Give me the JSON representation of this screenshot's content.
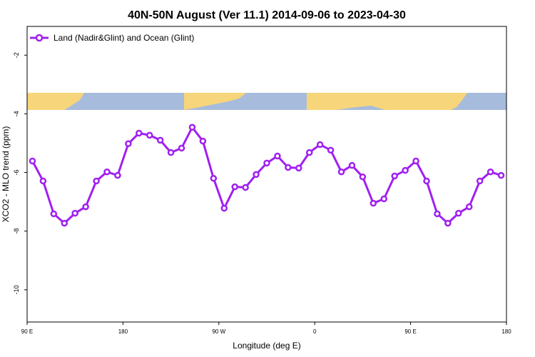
{
  "chart_data": {
    "type": "line",
    "title": "40N-50N August (Ver 11.1)   2014-09-06 to 2023-04-30",
    "x_label": "Longitude (deg E)",
    "y_label": "XCO2 - MLO trend (ppm)",
    "x": [
      95,
      105,
      115,
      125,
      135,
      145,
      155,
      165,
      175,
      185,
      195,
      205,
      215,
      225,
      235,
      245,
      255,
      265,
      275,
      285,
      295,
      305,
      315,
      325,
      335,
      345,
      355,
      365,
      375,
      385,
      395,
      405,
      415,
      425,
      435,
      445,
      455,
      465,
      475,
      485,
      495,
      505,
      515,
      525,
      535
    ],
    "series": [
      {
        "name": "Land (Nadir&Glint) and Ocean (Glint)",
        "color": "#a020f0",
        "values": [
          -5.61,
          -6.29,
          -7.41,
          -7.73,
          -7.39,
          -7.17,
          -6.29,
          -5.98,
          -6.1,
          -5.02,
          -4.66,
          -4.73,
          -4.9,
          -5.32,
          -5.17,
          -4.46,
          -4.93,
          -6.2,
          -7.22,
          -6.49,
          -6.51,
          -6.07,
          -5.68,
          -5.44,
          -5.83,
          -5.85,
          -5.32,
          -5.05,
          -5.24,
          -5.98,
          -5.76,
          -6.15,
          -7.05,
          -6.9,
          -6.12,
          -5.93,
          -5.61,
          -6.29,
          -7.41,
          -7.73,
          -7.39,
          -7.17,
          -6.29,
          -5.98,
          -6.1
        ]
      }
    ],
    "xlim": [
      90,
      540
    ],
    "xticks": [
      {
        "value": 90,
        "label": "90 E"
      },
      {
        "value": 180,
        "label": "180"
      },
      {
        "value": 270,
        "label": "90 W"
      },
      {
        "value": 360,
        "label": "0"
      },
      {
        "value": 450,
        "label": "90 E"
      },
      {
        "value": 540,
        "label": "180"
      }
    ],
    "ylim": [
      -11.1,
      -1.02
    ],
    "yticks": [
      -2,
      -4,
      -6,
      -8,
      -10
    ],
    "legend": "top-left"
  }
}
